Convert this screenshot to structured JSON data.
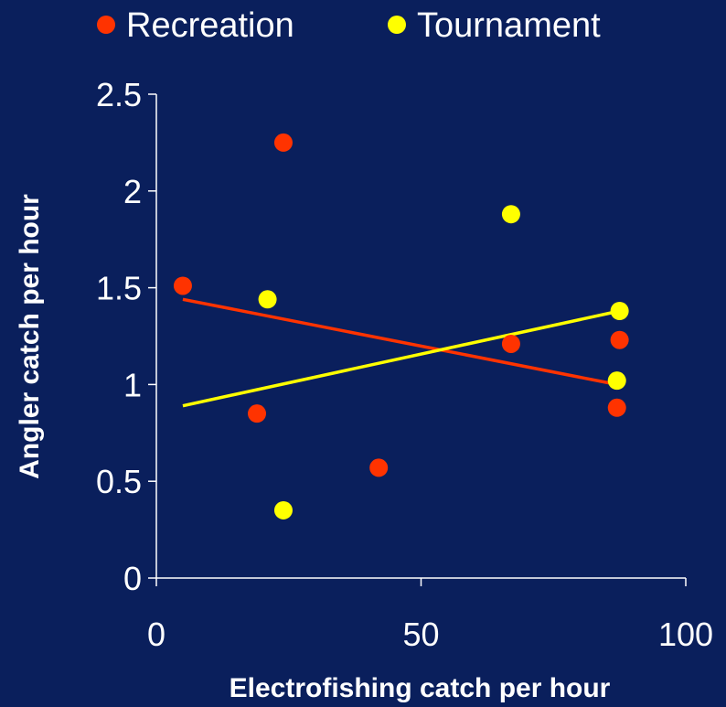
{
  "colors": {
    "background": "#0a1f5c",
    "recreation": "#ff3300",
    "tournament": "#ffff00",
    "axis": "#ffffff"
  },
  "chart_data": {
    "type": "scatter",
    "xlabel": "Electrofishing catch per hour",
    "ylabel": "Angler catch per hour",
    "xlim": [
      0,
      100
    ],
    "ylim": [
      0,
      2.5
    ],
    "x_ticks": [
      "0",
      "50",
      "100"
    ],
    "y_ticks": [
      "0",
      "0.5",
      "1",
      "1.5",
      "2",
      "2.5"
    ],
    "legend_position": "top",
    "grid": false,
    "series": [
      {
        "name": "Recreation",
        "color": "#ff3300",
        "points": [
          [
            5,
            1.51
          ],
          [
            19,
            0.85
          ],
          [
            24,
            2.25
          ],
          [
            42,
            0.57
          ],
          [
            67,
            1.21
          ],
          [
            87,
            0.88
          ],
          [
            87.5,
            1.23
          ]
        ],
        "trendline": [
          [
            5,
            1.44
          ],
          [
            87,
            1.0
          ]
        ]
      },
      {
        "name": "Tournament",
        "color": "#ffff00",
        "points": [
          [
            21,
            1.44
          ],
          [
            24,
            0.35
          ],
          [
            67,
            1.88
          ],
          [
            87,
            1.02
          ],
          [
            87.5,
            1.38
          ]
        ],
        "trendline": [
          [
            5,
            0.89
          ],
          [
            87.5,
            1.38
          ]
        ]
      }
    ]
  }
}
